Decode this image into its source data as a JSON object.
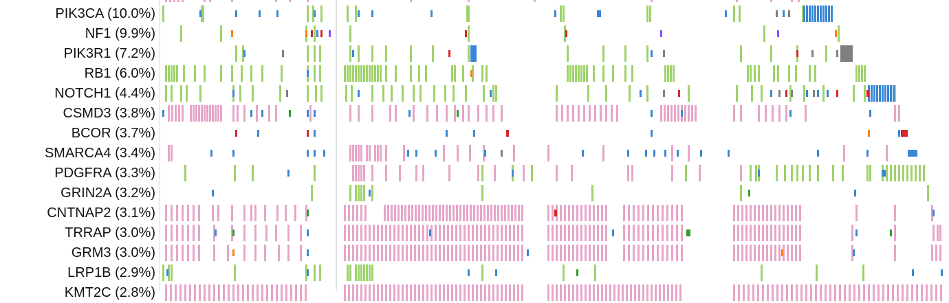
{
  "colors": {
    "missense": "#9ed26a",
    "truncating": "#e6a5c8",
    "inframe": "#3b87d6",
    "splice": "#ff7f0e",
    "promoter": "#d62728",
    "fusion": "#7f7f7f",
    "other": "#8a4fff",
    "structural": "#2ca02c"
  },
  "genes": [
    {
      "label": "PIK3CA (10.0%)"
    },
    {
      "label": "NF1 (9.9%)"
    },
    {
      "label": "PIK3R1 (7.2%)"
    },
    {
      "label": "RB1 (6.0%)"
    },
    {
      "label": "NOTCH1 (4.4%)"
    },
    {
      "label": "CSMD3 (3.8%)"
    },
    {
      "label": "BCOR (3.7%)"
    },
    {
      "label": "SMARCA4 (3.4%)"
    },
    {
      "label": "PDGFRA (3.3%)"
    },
    {
      "label": "GRIN2A (3.2%)"
    },
    {
      "label": "CNTNAP2 (3.1%)"
    },
    {
      "label": "TRRAP (3.0%)"
    },
    {
      "label": "GRM3 (3.0%)"
    },
    {
      "label": "LRP1B (2.9%)"
    },
    {
      "label": "KMT2C (2.8%)"
    }
  ]
}
